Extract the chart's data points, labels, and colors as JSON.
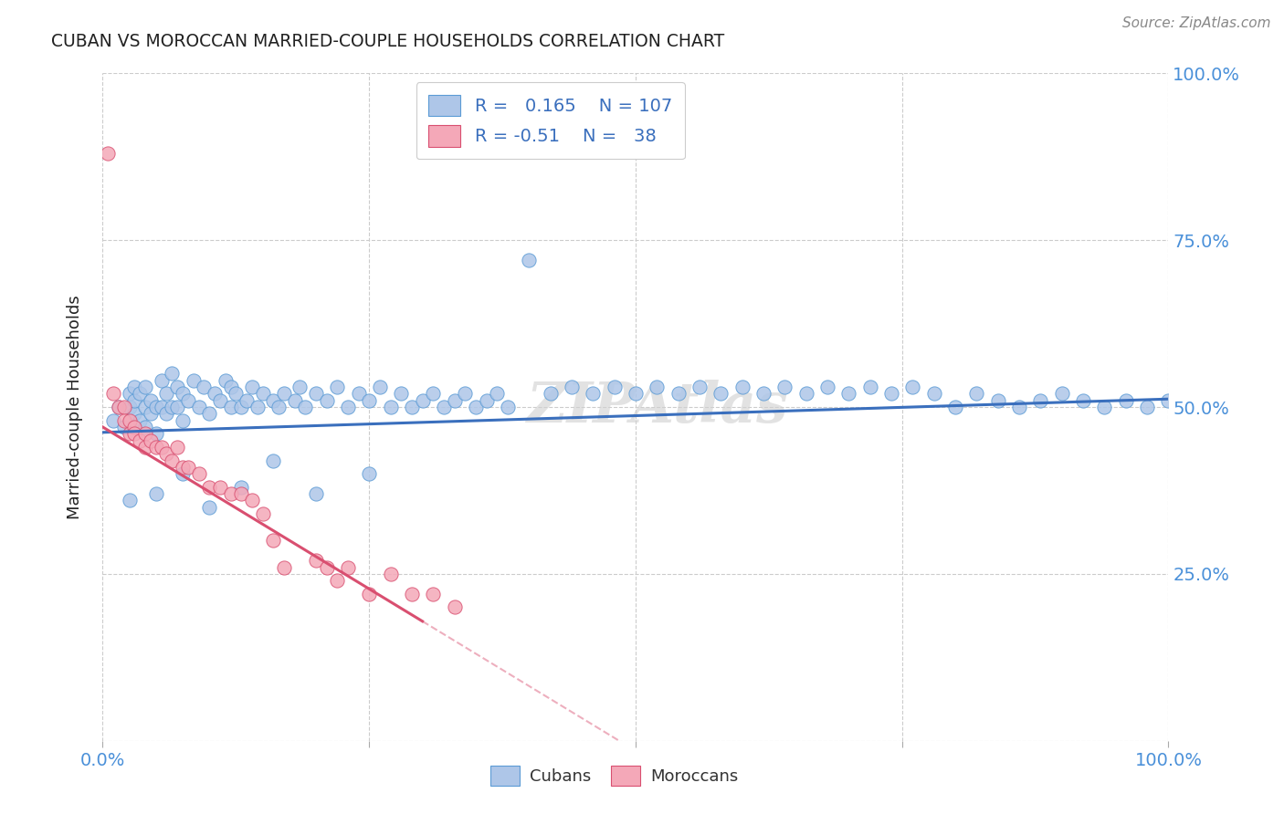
{
  "title": "CUBAN VS MOROCCAN MARRIED-COUPLE HOUSEHOLDS CORRELATION CHART",
  "source": "Source: ZipAtlas.com",
  "ylabel": "Married-couple Households",
  "r_cuban": 0.165,
  "n_cuban": 107,
  "r_moroccan": -0.51,
  "n_moroccan": 38,
  "cuban_color": "#aec6e8",
  "moroccan_color": "#f4a8b8",
  "cuban_edge_color": "#5b9bd5",
  "moroccan_edge_color": "#d94f70",
  "cuban_line_color": "#3a6fbd",
  "moroccan_line_color": "#d94f70",
  "watermark": "ZIPAtlas",
  "background_color": "#ffffff",
  "grid_color": "#cccccc",
  "title_color": "#222222",
  "source_color": "#888888",
  "axis_tick_color": "#4a90d9",
  "legend_text_color": "#3a6fbd",
  "bottom_legend_color": "#333333",
  "cuban_scatter_x": [
    0.01,
    0.015,
    0.02,
    0.025,
    0.025,
    0.03,
    0.03,
    0.03,
    0.035,
    0.035,
    0.04,
    0.04,
    0.04,
    0.045,
    0.045,
    0.05,
    0.05,
    0.055,
    0.055,
    0.06,
    0.06,
    0.065,
    0.065,
    0.07,
    0.07,
    0.075,
    0.075,
    0.08,
    0.085,
    0.09,
    0.095,
    0.1,
    0.105,
    0.11,
    0.115,
    0.12,
    0.12,
    0.125,
    0.13,
    0.135,
    0.14,
    0.145,
    0.15,
    0.16,
    0.165,
    0.17,
    0.18,
    0.185,
    0.19,
    0.2,
    0.21,
    0.22,
    0.23,
    0.24,
    0.25,
    0.26,
    0.27,
    0.28,
    0.29,
    0.3,
    0.31,
    0.32,
    0.33,
    0.34,
    0.35,
    0.36,
    0.37,
    0.38,
    0.4,
    0.42,
    0.44,
    0.46,
    0.48,
    0.5,
    0.52,
    0.54,
    0.56,
    0.58,
    0.6,
    0.62,
    0.64,
    0.66,
    0.68,
    0.7,
    0.72,
    0.74,
    0.76,
    0.78,
    0.8,
    0.82,
    0.84,
    0.86,
    0.88,
    0.9,
    0.92,
    0.94,
    0.96,
    0.98,
    1.0,
    0.025,
    0.05,
    0.075,
    0.1,
    0.13,
    0.16,
    0.2,
    0.25
  ],
  "cuban_scatter_y": [
    0.48,
    0.5,
    0.47,
    0.5,
    0.52,
    0.49,
    0.51,
    0.53,
    0.48,
    0.52,
    0.47,
    0.5,
    0.53,
    0.49,
    0.51,
    0.46,
    0.5,
    0.5,
    0.54,
    0.49,
    0.52,
    0.5,
    0.55,
    0.5,
    0.53,
    0.48,
    0.52,
    0.51,
    0.54,
    0.5,
    0.53,
    0.49,
    0.52,
    0.51,
    0.54,
    0.5,
    0.53,
    0.52,
    0.5,
    0.51,
    0.53,
    0.5,
    0.52,
    0.51,
    0.5,
    0.52,
    0.51,
    0.53,
    0.5,
    0.52,
    0.51,
    0.53,
    0.5,
    0.52,
    0.51,
    0.53,
    0.5,
    0.52,
    0.5,
    0.51,
    0.52,
    0.5,
    0.51,
    0.52,
    0.5,
    0.51,
    0.52,
    0.5,
    0.72,
    0.52,
    0.53,
    0.52,
    0.53,
    0.52,
    0.53,
    0.52,
    0.53,
    0.52,
    0.53,
    0.52,
    0.53,
    0.52,
    0.53,
    0.52,
    0.53,
    0.52,
    0.53,
    0.52,
    0.5,
    0.52,
    0.51,
    0.5,
    0.51,
    0.52,
    0.51,
    0.5,
    0.51,
    0.5,
    0.51,
    0.36,
    0.37,
    0.4,
    0.35,
    0.38,
    0.42,
    0.37,
    0.4
  ],
  "moroccan_scatter_x": [
    0.005,
    0.01,
    0.015,
    0.02,
    0.02,
    0.025,
    0.025,
    0.03,
    0.03,
    0.035,
    0.04,
    0.04,
    0.045,
    0.05,
    0.055,
    0.06,
    0.065,
    0.07,
    0.075,
    0.08,
    0.09,
    0.1,
    0.11,
    0.12,
    0.13,
    0.14,
    0.15,
    0.16,
    0.17,
    0.2,
    0.21,
    0.22,
    0.23,
    0.25,
    0.27,
    0.29,
    0.31,
    0.33
  ],
  "moroccan_scatter_y": [
    0.88,
    0.52,
    0.5,
    0.5,
    0.48,
    0.48,
    0.46,
    0.47,
    0.46,
    0.45,
    0.46,
    0.44,
    0.45,
    0.44,
    0.44,
    0.43,
    0.42,
    0.44,
    0.41,
    0.41,
    0.4,
    0.38,
    0.38,
    0.37,
    0.37,
    0.36,
    0.34,
    0.3,
    0.26,
    0.27,
    0.26,
    0.24,
    0.26,
    0.22,
    0.25,
    0.22,
    0.22,
    0.2
  ]
}
